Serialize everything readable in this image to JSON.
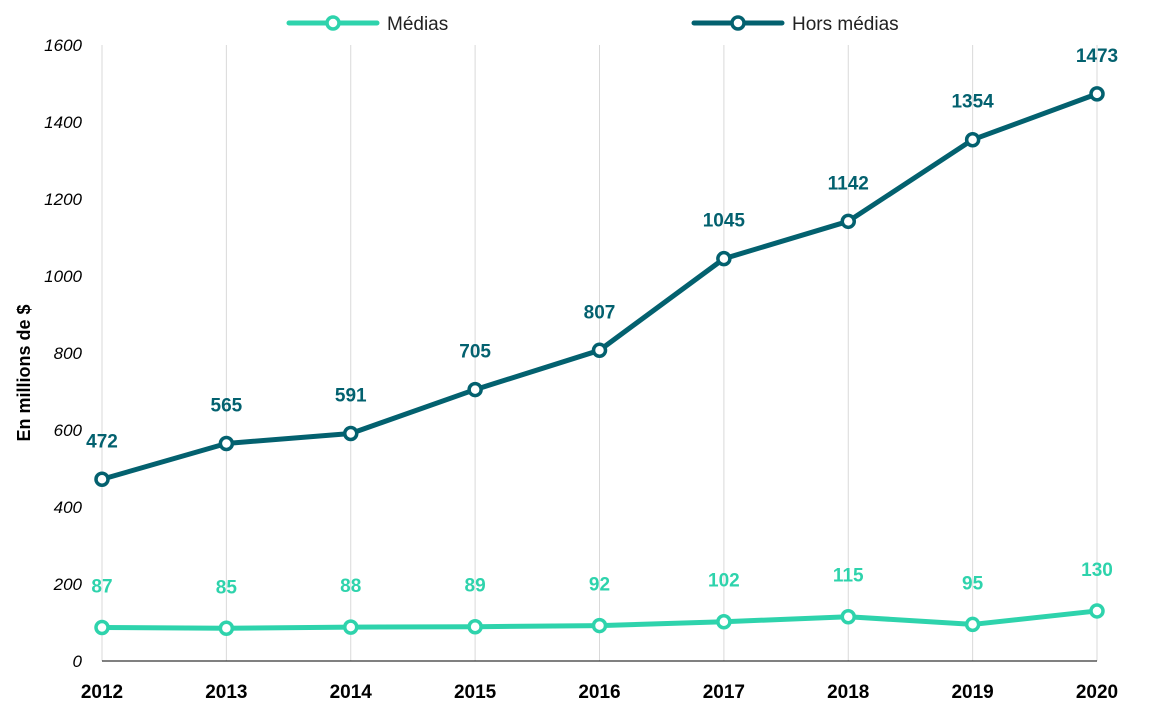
{
  "chart_data": {
    "type": "line",
    "ylabel": "En millions de $",
    "xlabel": "",
    "ylim": [
      0,
      1600
    ],
    "yticks": [
      0,
      200,
      400,
      600,
      800,
      1000,
      1200,
      1400,
      1600
    ],
    "categories": [
      "2012",
      "2013",
      "2014",
      "2015",
      "2016",
      "2017",
      "2018",
      "2019",
      "2020"
    ],
    "grid": "vertical",
    "legend_position": "top",
    "series": [
      {
        "name": "Médias",
        "color": "#2ed3ac",
        "values": [
          87,
          85,
          88,
          89,
          92,
          102,
          115,
          95,
          130
        ]
      },
      {
        "name": "Hors médias",
        "color": "#03616f",
        "values": [
          472,
          565,
          591,
          705,
          807,
          1045,
          1142,
          1354,
          1473
        ]
      }
    ]
  }
}
